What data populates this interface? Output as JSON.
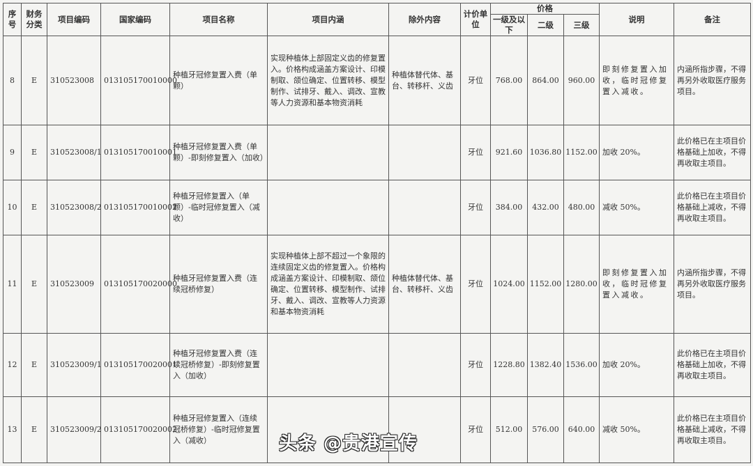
{
  "headers": {
    "seq": "序号",
    "finance_class": "财务分类",
    "item_code": "项目编码",
    "national_code": "国家编码",
    "item_name": "项目名称",
    "content": "项目内涵",
    "excluded": "除外内容",
    "unit": "计价单位",
    "price": "价格",
    "level1": "一级及以下",
    "level2": "二级",
    "level3": "三级",
    "description": "说明",
    "remarks": "备注"
  },
  "rows": [
    {
      "seq": "8",
      "finance_class": "E",
      "item_code": "310523008",
      "national_code": "013105170010000",
      "item_name": "种植牙冠修复置入费（单颗）",
      "content": "实现种植体上部固定义齿的修复置入。价格构成涵盖方案设计、印模制取、颌位确定、位置转移、模型制作、试排牙、戴入、调改、宣教等人力资源和基本物资消耗",
      "excluded": "种植体替代体、基台、转移杆、义齿",
      "unit": "牙位",
      "level1": "768.00",
      "level2": "864.00",
      "level3": "960.00",
      "description": "即刻修复置入加收，临时冠修复置入减收。",
      "remarks": "内涵所指步骤，不得再另外收取医疗服务项目。"
    },
    {
      "seq": "9",
      "finance_class": "E",
      "item_code": "310523008/1",
      "national_code": "013105170010001",
      "item_name": "种植牙冠修复置入费（单颗）-即刻修复置入（加收）",
      "content": "",
      "excluded": "",
      "unit": "牙位",
      "level1": "921.60",
      "level2": "1036.80",
      "level3": "1152.00",
      "description": "加收 20%。",
      "remarks": "此价格已在主项目价格基础上加收，不得再收取主项目。"
    },
    {
      "seq": "10",
      "finance_class": "E",
      "item_code": "310523008/2",
      "national_code": "013105170010002",
      "item_name": "种植牙冠修复置入（单颗）-临时冠修复置入（减收）",
      "content": "",
      "excluded": "",
      "unit": "牙位",
      "level1": "384.00",
      "level2": "432.00",
      "level3": "480.00",
      "description": "减收 50%。",
      "remarks": "此价格已在主项目价格基础上减收，不得再收取主项目。"
    },
    {
      "seq": "11",
      "finance_class": "E",
      "item_code": "310523009",
      "national_code": "013105170020000",
      "item_name": "种植牙冠修复置入费（连续冠桥修复）",
      "content": "实现种植体上部不超过一个象限的连续固定义齿的修复置入。价格构成涵盖方案设计、印模制取、颌位确定、位置转移、模型制作、试排牙、戴入、调改、宣教等人力资源和基本物资消耗",
      "excluded": "种植体替代体、基台、转移杆、义齿",
      "unit": "牙位",
      "level1": "1024.00",
      "level2": "1152.00",
      "level3": "1280.00",
      "description": "即刻修复置入加收，临时冠修复置入减收。",
      "remarks": "内涵所指步骤，不得再另外收取医疗服务项目。"
    },
    {
      "seq": "12",
      "finance_class": "E",
      "item_code": "310523009/1",
      "national_code": "013105170020001",
      "item_name": "种植牙冠修复置入费（连续冠桥修复）-即刻修复置入（加收）",
      "content": "",
      "excluded": "",
      "unit": "牙位",
      "level1": "1228.80",
      "level2": "1382.40",
      "level3": "1536.00",
      "description": "加收 20%。",
      "remarks": "此价格已在主项目价格基础上加收，不得再收取主项目。"
    },
    {
      "seq": "13",
      "finance_class": "E",
      "item_code": "310523009/2",
      "national_code": "013105170020002",
      "item_name": "种植牙冠修复置入（连续冠桥修复）-临时冠修复置入（减收）",
      "content": "",
      "excluded": "",
      "unit": "牙位",
      "level1": "512.00",
      "level2": "576.00",
      "level3": "640.00",
      "description": "减收 50%。",
      "remarks": "此价格已在主项目价格基础上减收，不得再收取主项目。"
    }
  ],
  "watermark": "头条 @贵港宣传"
}
